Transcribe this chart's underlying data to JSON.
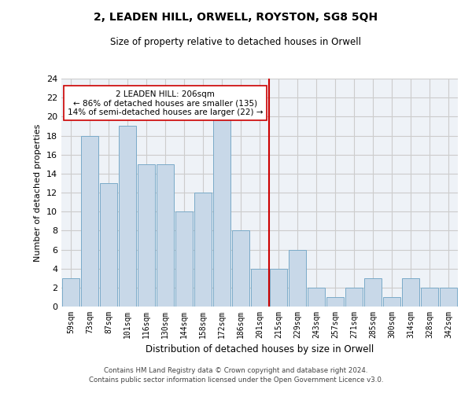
{
  "title": "2, LEADEN HILL, ORWELL, ROYSTON, SG8 5QH",
  "subtitle": "Size of property relative to detached houses in Orwell",
  "xlabel": "Distribution of detached houses by size in Orwell",
  "ylabel": "Number of detached properties",
  "categories": [
    "59sqm",
    "73sqm",
    "87sqm",
    "101sqm",
    "116sqm",
    "130sqm",
    "144sqm",
    "158sqm",
    "172sqm",
    "186sqm",
    "201sqm",
    "215sqm",
    "229sqm",
    "243sqm",
    "257sqm",
    "271sqm",
    "285sqm",
    "300sqm",
    "314sqm",
    "328sqm",
    "342sqm"
  ],
  "values": [
    3,
    18,
    13,
    19,
    15,
    15,
    10,
    12,
    20,
    8,
    4,
    4,
    6,
    2,
    1,
    2,
    3,
    1,
    3,
    2,
    2
  ],
  "bar_color": "#c8d8e8",
  "bar_edgecolor": "#7aaac8",
  "vline_x": 10.5,
  "vline_color": "#cc0000",
  "annotation_text": "2 LEADEN HILL: 206sqm\n← 86% of detached houses are smaller (135)\n14% of semi-detached houses are larger (22) →",
  "annotation_box_edgecolor": "#cc0000",
  "annotation_box_facecolor": "#ffffff",
  "ylim": [
    0,
    24
  ],
  "yticks": [
    0,
    2,
    4,
    6,
    8,
    10,
    12,
    14,
    16,
    18,
    20,
    22,
    24
  ],
  "grid_color": "#cccccc",
  "background_color": "#eef2f7",
  "footer_line1": "Contains HM Land Registry data © Crown copyright and database right 2024.",
  "footer_line2": "Contains public sector information licensed under the Open Government Licence v3.0."
}
